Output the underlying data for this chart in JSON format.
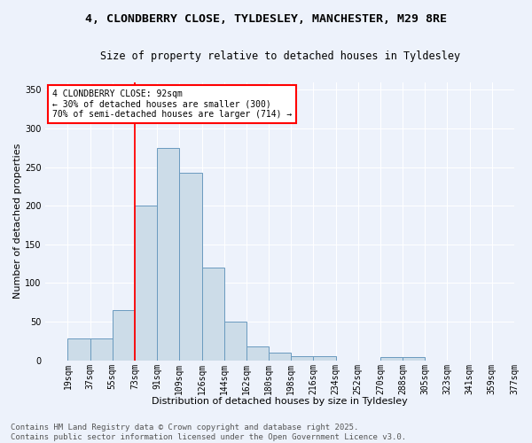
{
  "title_line1": "4, CLONDBERRY CLOSE, TYLDESLEY, MANCHESTER, M29 8RE",
  "title_line2": "Size of property relative to detached houses in Tyldesley",
  "xlabel": "Distribution of detached houses by size in Tyldesley",
  "ylabel": "Number of detached properties",
  "bar_labels": [
    "19sqm",
    "37sqm",
    "55sqm",
    "73sqm",
    "91sqm",
    "109sqm",
    "126sqm",
    "144sqm",
    "162sqm",
    "180sqm",
    "198sqm",
    "216sqm",
    "234sqm",
    "252sqm",
    "270sqm",
    "288sqm",
    "305sqm",
    "323sqm",
    "341sqm",
    "359sqm",
    "377sqm"
  ],
  "bar_values": [
    0,
    28,
    28,
    65,
    200,
    275,
    243,
    120,
    50,
    18,
    10,
    5,
    5,
    0,
    0,
    4,
    4,
    0,
    0,
    0,
    0
  ],
  "bar_color": "#ccdce8",
  "bar_edge_color": "#6a9abf",
  "property_bin_index": 4,
  "annotation_text": "4 CLONDBERRY CLOSE: 92sqm\n← 30% of detached houses are smaller (300)\n70% of semi-detached houses are larger (714) →",
  "ylim": [
    0,
    360
  ],
  "yticks": [
    0,
    50,
    100,
    150,
    200,
    250,
    300,
    350
  ],
  "bg_color": "#edf2fb",
  "grid_color": "#ffffff",
  "footer_text": "Contains HM Land Registry data © Crown copyright and database right 2025.\nContains public sector information licensed under the Open Government Licence v3.0.",
  "title_fontsize": 9.5,
  "subtitle_fontsize": 8.5,
  "axis_label_fontsize": 8,
  "tick_fontsize": 7,
  "footer_fontsize": 6.5,
  "annot_fontsize": 7
}
